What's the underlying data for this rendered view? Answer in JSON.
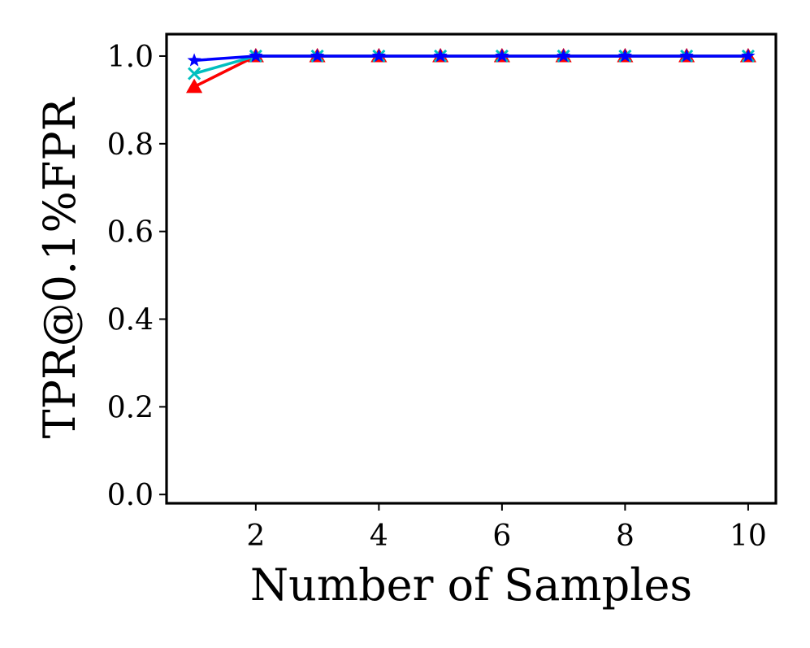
{
  "chart_data": {
    "type": "line",
    "xlabel": "Number of Samples",
    "ylabel": "TPR@0.1%FPR",
    "xlim": [
      0.55,
      10.45
    ],
    "ylim": [
      -0.02,
      1.05
    ],
    "xticks": [
      2,
      4,
      6,
      8,
      10
    ],
    "yticks": [
      0.0,
      0.2,
      0.4,
      0.6,
      0.8,
      1.0
    ],
    "xtick_labels": [
      "2",
      "4",
      "6",
      "8",
      "10"
    ],
    "ytick_labels": [
      "0.0",
      "0.2",
      "0.4",
      "0.6",
      "0.8",
      "1.0"
    ],
    "grid": false,
    "legend": "none",
    "x": [
      1,
      2,
      3,
      4,
      5,
      6,
      7,
      8,
      9,
      10
    ],
    "series": [
      {
        "color": "#808080",
        "marker": "triangle",
        "values": [
          0.93,
          1.0,
          1.0,
          1.0,
          1.0,
          1.0,
          1.0,
          1.0,
          1.0,
          1.0
        ]
      },
      {
        "color": "#ff0000",
        "marker": "triangle",
        "values": [
          0.93,
          1.0,
          1.0,
          1.0,
          1.0,
          1.0,
          1.0,
          1.0,
          1.0,
          1.0
        ]
      },
      {
        "color": "#00bfbf",
        "marker": "x",
        "values": [
          0.96,
          1.0,
          1.0,
          1.0,
          1.0,
          1.0,
          1.0,
          1.0,
          1.0,
          1.0
        ]
      },
      {
        "color": "#0000ff",
        "marker": "star",
        "values": [
          0.99,
          1.0,
          1.0,
          1.0,
          1.0,
          1.0,
          1.0,
          1.0,
          1.0,
          1.0
        ]
      }
    ]
  }
}
